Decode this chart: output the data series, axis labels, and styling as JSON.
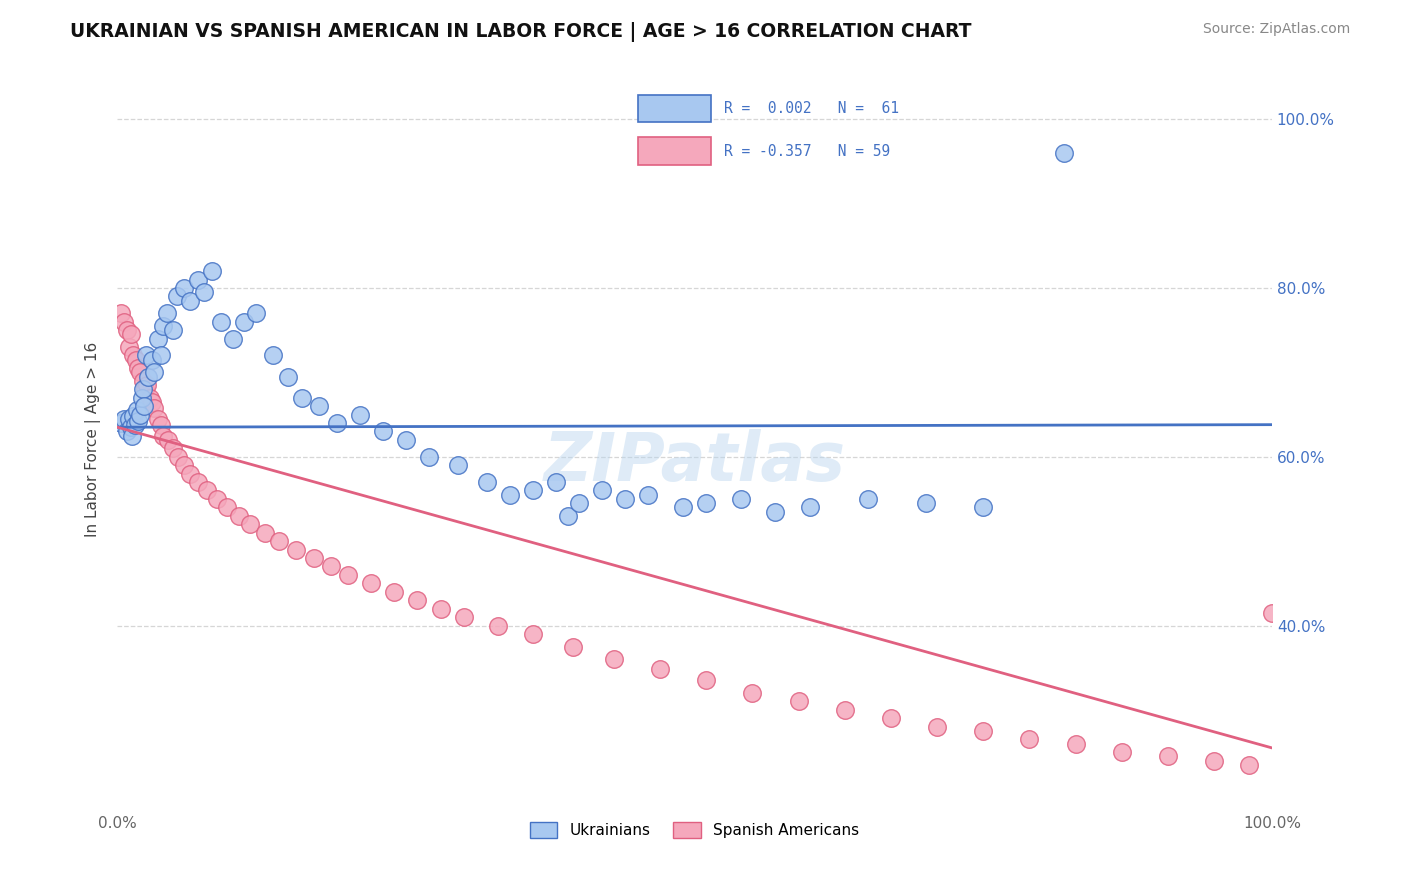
{
  "title": "UKRAINIAN VS SPANISH AMERICAN IN LABOR FORCE | AGE > 16 CORRELATION CHART",
  "source_text": "Source: ZipAtlas.com",
  "ylabel": "In Labor Force | Age > 16",
  "xlim": [
    0.0,
    1.0
  ],
  "ylim": [
    0.18,
    1.06
  ],
  "legend_r1": "R =  0.002",
  "legend_n1": "N =  61",
  "legend_r2": "R = -0.357",
  "legend_n2": "N = 59",
  "legend_label1": "Ukrainians",
  "legend_label2": "Spanish Americans",
  "color_ukrainian": "#A8C8F0",
  "color_spanish": "#F5A8BC",
  "color_ukrainian_line": "#4472C4",
  "color_spanish_line": "#E06080",
  "watermark": "ZIPatlas",
  "background_color": "#FFFFFF",
  "grid_color": "#CCCCCC",
  "ukr_line_y0": 0.635,
  "ukr_line_y1": 0.638,
  "spa_line_y0": 0.635,
  "spa_line_y1": 0.255,
  "ukrainian_x": [
    0.003,
    0.006,
    0.008,
    0.01,
    0.012,
    0.013,
    0.014,
    0.015,
    0.017,
    0.018,
    0.02,
    0.021,
    0.022,
    0.023,
    0.025,
    0.027,
    0.03,
    0.032,
    0.035,
    0.038,
    0.04,
    0.043,
    0.048,
    0.052,
    0.058,
    0.063,
    0.07,
    0.075,
    0.082,
    0.09,
    0.1,
    0.11,
    0.12,
    0.135,
    0.148,
    0.16,
    0.175,
    0.19,
    0.21,
    0.23,
    0.25,
    0.27,
    0.295,
    0.32,
    0.34,
    0.36,
    0.38,
    0.39,
    0.4,
    0.42,
    0.44,
    0.46,
    0.49,
    0.51,
    0.54,
    0.57,
    0.6,
    0.65,
    0.7,
    0.75,
    0.82
  ],
  "ukrainian_y": [
    0.64,
    0.645,
    0.63,
    0.645,
    0.635,
    0.625,
    0.648,
    0.638,
    0.655,
    0.642,
    0.65,
    0.67,
    0.68,
    0.66,
    0.72,
    0.695,
    0.715,
    0.7,
    0.74,
    0.72,
    0.755,
    0.77,
    0.75,
    0.79,
    0.8,
    0.785,
    0.81,
    0.795,
    0.82,
    0.76,
    0.74,
    0.76,
    0.77,
    0.72,
    0.695,
    0.67,
    0.66,
    0.64,
    0.65,
    0.63,
    0.62,
    0.6,
    0.59,
    0.57,
    0.555,
    0.56,
    0.57,
    0.53,
    0.545,
    0.56,
    0.55,
    0.555,
    0.54,
    0.545,
    0.55,
    0.535,
    0.54,
    0.55,
    0.545,
    0.54,
    0.96
  ],
  "spanish_x": [
    0.003,
    0.006,
    0.008,
    0.01,
    0.012,
    0.014,
    0.016,
    0.018,
    0.02,
    0.022,
    0.024,
    0.026,
    0.028,
    0.03,
    0.032,
    0.035,
    0.038,
    0.04,
    0.044,
    0.048,
    0.053,
    0.058,
    0.063,
    0.07,
    0.078,
    0.086,
    0.095,
    0.105,
    0.115,
    0.128,
    0.14,
    0.155,
    0.17,
    0.185,
    0.2,
    0.22,
    0.24,
    0.26,
    0.28,
    0.3,
    0.33,
    0.36,
    0.395,
    0.43,
    0.47,
    0.51,
    0.55,
    0.59,
    0.63,
    0.67,
    0.71,
    0.75,
    0.79,
    0.83,
    0.87,
    0.91,
    0.95,
    0.98,
    1.0
  ],
  "spanish_y": [
    0.77,
    0.76,
    0.75,
    0.73,
    0.745,
    0.72,
    0.715,
    0.705,
    0.7,
    0.69,
    0.68,
    0.685,
    0.67,
    0.665,
    0.658,
    0.645,
    0.638,
    0.625,
    0.62,
    0.61,
    0.6,
    0.59,
    0.58,
    0.57,
    0.56,
    0.55,
    0.54,
    0.53,
    0.52,
    0.51,
    0.5,
    0.49,
    0.48,
    0.47,
    0.46,
    0.45,
    0.44,
    0.43,
    0.42,
    0.41,
    0.4,
    0.39,
    0.375,
    0.36,
    0.348,
    0.335,
    0.32,
    0.31,
    0.3,
    0.29,
    0.28,
    0.275,
    0.265,
    0.26,
    0.25,
    0.245,
    0.24,
    0.235,
    0.415
  ]
}
